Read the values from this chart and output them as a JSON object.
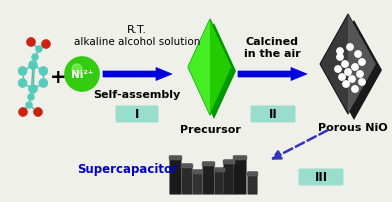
{
  "bg_color": "#f0f0eb",
  "arrow_color": "#0000dd",
  "dashed_arrow_color": "#3333bb",
  "step_box_color": "#99ddcc",
  "step_labels": [
    "I",
    "II",
    "III"
  ],
  "top_label1": "R.T.",
  "top_label2": "alkaline alcohol solution",
  "self_assembly_label": "Self-assembly",
  "calcined_label1": "Calcined",
  "calcined_label2": "in the air",
  "precursor_label": "Precursor",
  "porous_nio_label": "Porous NiO",
  "supercapacitor_label": "Supercapacitor",
  "ni_label": "Ni²⁺",
  "plus_label": "+",
  "ni_circle_color": "#33cc11",
  "ni_circle_edge": "#117700",
  "molecule_color_main": "#55ccbb",
  "molecule_color_red": "#cc2211",
  "green_face1": "#22cc00",
  "green_face2": "#44ee22",
  "green_face3": "#009900",
  "dark_face1": "#3a3a3a",
  "dark_face2": "#555555",
  "dark_face3": "#222222"
}
